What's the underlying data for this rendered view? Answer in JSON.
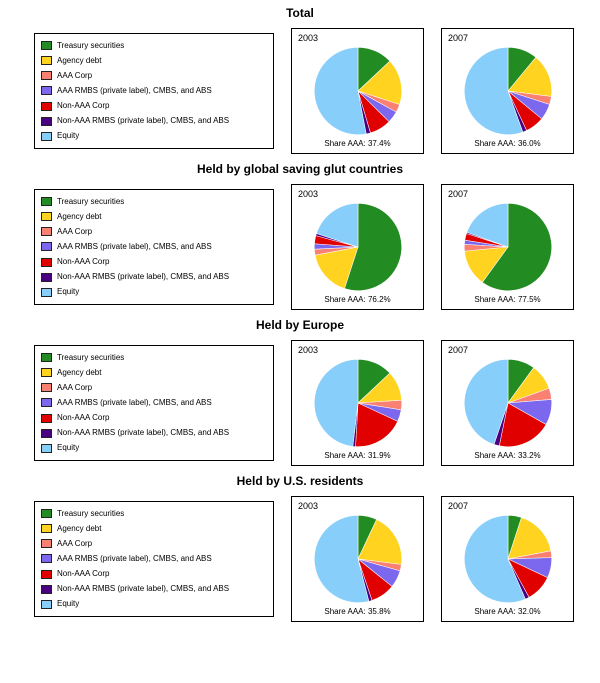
{
  "chart_data": {
    "type": "pie",
    "categories": [
      "Treasury securities",
      "Agency debt",
      "AAA Corp",
      "AAA RMBS (private label), CMBS, and ABS",
      "Non-AAA Corp",
      "Non-AAA RMBS (private label), CMBS, and ABS",
      "Equity"
    ],
    "colors": [
      "#228B22",
      "#FFD320",
      "#FA8072",
      "#7B68EE",
      "#E00000",
      "#4B0082",
      "#87CEFA"
    ],
    "start_angle": "12-oclock",
    "direction": "clockwise",
    "sections": [
      {
        "title": "Total",
        "pies": [
          {
            "year": "2003",
            "share_aaa": 37.4,
            "share_label": "Share AAA: 37.4%",
            "values": [
              13,
              17,
              3,
              4.4,
              8,
              1.6,
              53
            ]
          },
          {
            "year": "2007",
            "share_aaa": 36.0,
            "share_label": "Share AAA: 36.0%",
            "values": [
              11,
              16,
              3,
              6,
              7,
              1.5,
              55.5
            ]
          }
        ]
      },
      {
        "title": "Held by global saving glut countries",
        "pies": [
          {
            "year": "2003",
            "share_aaa": 76.2,
            "share_label": "Share AAA: 76.2%",
            "values": [
              55,
              17,
              2.2,
              2,
              3,
              0.8,
              20
            ]
          },
          {
            "year": "2007",
            "share_aaa": 77.5,
            "share_label": "Share AAA: 77.5%",
            "values": [
              60,
              13.5,
              2.5,
              1.5,
              2.5,
              0.5,
              19.5
            ]
          }
        ]
      },
      {
        "title": "Held by Europe",
        "pies": [
          {
            "year": "2003",
            "share_aaa": 31.9,
            "share_label": "Share AAA: 31.9%",
            "values": [
              13,
              11,
              3.5,
              4.4,
              19,
              1,
              48.1
            ]
          },
          {
            "year": "2007",
            "share_aaa": 33.2,
            "share_label": "Share AAA: 33.2%",
            "values": [
              10,
              9.5,
              4.2,
              9.5,
              20,
              2,
              44.8
            ]
          }
        ]
      },
      {
        "title": "Held by U.S. residents",
        "pies": [
          {
            "year": "2003",
            "share_aaa": 35.8,
            "share_label": "Share AAA: 35.8%",
            "values": [
              7,
              20,
              2.4,
              6.4,
              9,
              1.2,
              54
            ]
          },
          {
            "year": "2007",
            "share_aaa": 32.0,
            "share_label": "Share AAA: 32.0%",
            "values": [
              5,
              17,
              2.5,
              7.5,
              10,
              1.5,
              56.5
            ]
          }
        ]
      }
    ]
  }
}
